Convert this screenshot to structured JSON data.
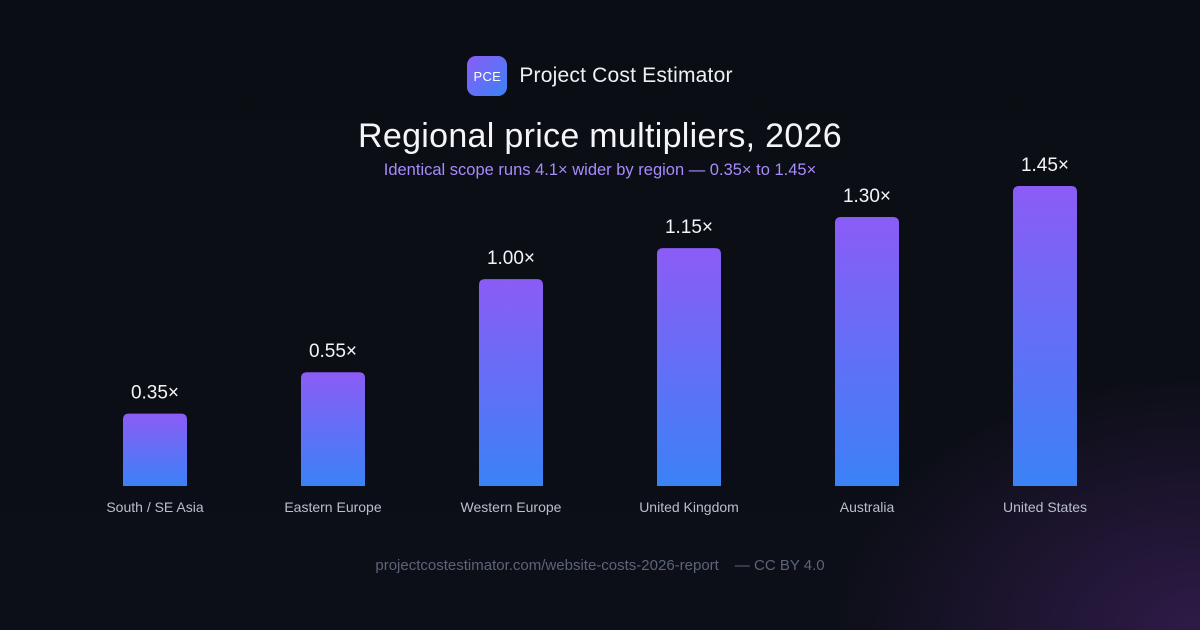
{
  "brand": {
    "logo_text": "PCE",
    "name": "Project Cost Estimator"
  },
  "header": {
    "title": "Regional price multipliers, 2026",
    "subtitle": "Identical scope runs 4.1× wider by region — 0.35× to 1.45×"
  },
  "footer": {
    "source": "projectcostestimator.com/website-costs-2026-report",
    "license": "— CC BY 4.0"
  },
  "colors": {
    "bar_top": "#8b5cf6",
    "bar_bottom": "#3b82f6",
    "value_label": "#f4f5fa",
    "category_label": "#b9bfcc"
  },
  "chart_data": {
    "type": "bar",
    "categories": [
      "South / SE Asia",
      "Eastern Europe",
      "Western Europe",
      "United Kingdom",
      "Australia",
      "United States"
    ],
    "values": [
      0.35,
      0.55,
      1.0,
      1.15,
      1.3,
      1.45
    ],
    "value_labels": [
      "0.35×",
      "0.55×",
      "1.00×",
      "1.15×",
      "1.30×",
      "1.45×"
    ],
    "title": "Regional price multipliers, 2026",
    "subtitle": "Identical scope runs 4.1× wider by region — 0.35× to 1.45×",
    "xlabel": "",
    "ylabel": "",
    "ylim": [
      0,
      1.45
    ],
    "grid": false,
    "legend": "none"
  }
}
